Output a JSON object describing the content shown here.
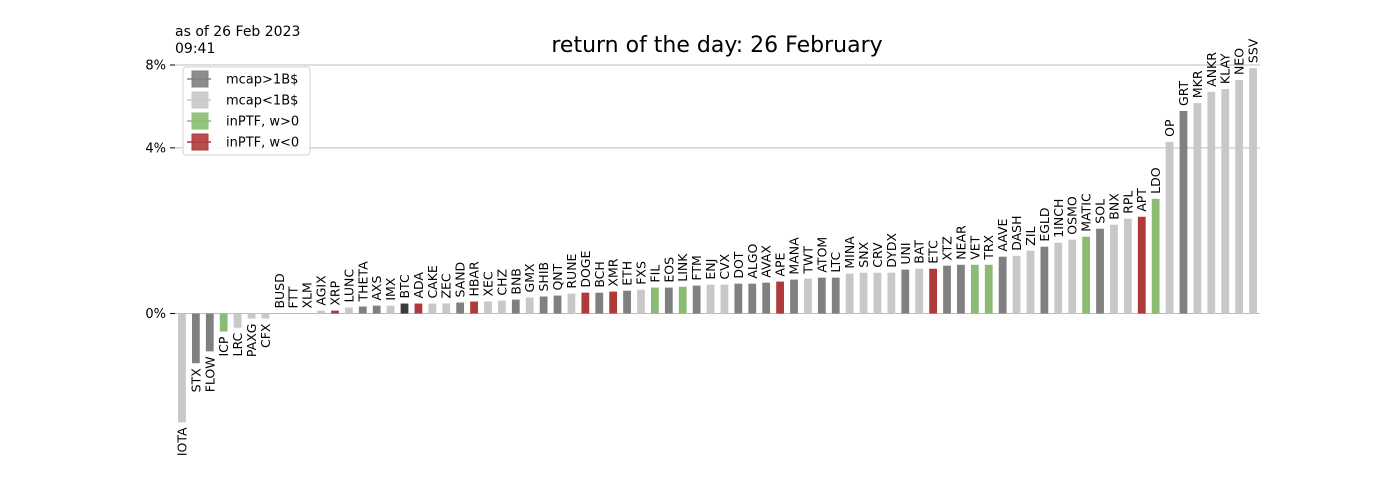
{
  "chart_data": {
    "type": "bar",
    "title": "return of the day: 26 February",
    "annotation": [
      "as of 26 Feb 2023",
      "09:41"
    ],
    "categories": [
      "IOTA",
      "STX",
      "FLOW",
      "ICP",
      "LRC",
      "PAXG",
      "CFX",
      "BUSD",
      "FTT",
      "XLM",
      "AGIX",
      "XRP",
      "LUNC",
      "THETA",
      "AXS",
      "IMX",
      "BTC",
      "ADA",
      "CAKE",
      "ZEC",
      "SAND",
      "HBAR",
      "XEC",
      "CHZ",
      "BNB",
      "GMX",
      "SHIB",
      "QNT",
      "RUNE",
      "DOGE",
      "BCH",
      "XMR",
      "ETH",
      "FXS",
      "FIL",
      "EOS",
      "LINK",
      "FTM",
      "ENJ",
      "CVX",
      "DOT",
      "ALGO",
      "AVAX",
      "APE",
      "MANA",
      "TWT",
      "ATOM",
      "LTC",
      "MINA",
      "SNX",
      "CRV",
      "DYDX",
      "UNI",
      "BAT",
      "ETC",
      "XTZ",
      "NEAR",
      "VET",
      "TRX",
      "AAVE",
      "DASH",
      "ZIL",
      "EGLD",
      "1INCH",
      "OSMO",
      "MATIC",
      "SOL",
      "BNX",
      "RPL",
      "APT",
      "LDO",
      "OP",
      "GRT",
      "MKR",
      "ANKR",
      "KLAY",
      "NEO",
      "SSV"
    ],
    "values": [
      -1.95,
      -0.51,
      -0.32,
      -0.09,
      -0.06,
      -0.01,
      -0.01,
      0,
      0,
      0,
      0.004,
      0.004,
      0.014,
      0.018,
      0.022,
      0.022,
      0.033,
      0.033,
      0.033,
      0.033,
      0.039,
      0.045,
      0.045,
      0.051,
      0.058,
      0.074,
      0.082,
      0.09,
      0.107,
      0.116,
      0.116,
      0.126,
      0.135,
      0.145,
      0.168,
      0.168,
      0.178,
      0.191,
      0.202,
      0.202,
      0.214,
      0.214,
      0.226,
      0.24,
      0.266,
      0.279,
      0.293,
      0.293,
      0.351,
      0.365,
      0.365,
      0.365,
      0.413,
      0.428,
      0.428,
      0.479,
      0.494,
      0.494,
      0.494,
      0.643,
      0.66,
      0.763,
      0.848,
      0.936,
      1.005,
      1.075,
      1.274,
      1.378,
      1.539,
      1.595,
      2.134,
      4.25,
      5.64,
      6.02,
      6.58,
      6.72,
      7.19,
      7.83
    ],
    "colors": [
      "#c8c8c8",
      "#808080",
      "#808080",
      "#8cbc73",
      "#c8c8c8",
      "#c8c8c8",
      "#c8c8c8",
      "#c8c8c8",
      "#c8c8c8",
      "#c8c8c8",
      "#c8c8c8",
      "#b03a3a",
      "#c8c8c8",
      "#808080",
      "#808080",
      "#c8c8c8",
      "#3a3a3a",
      "#b03a3a",
      "#c8c8c8",
      "#c8c8c8",
      "#808080",
      "#b03a3a",
      "#c8c8c8",
      "#c8c8c8",
      "#808080",
      "#c8c8c8",
      "#808080",
      "#808080",
      "#c8c8c8",
      "#b03a3a",
      "#808080",
      "#b03a3a",
      "#808080",
      "#c8c8c8",
      "#8cbc73",
      "#808080",
      "#8cbc73",
      "#808080",
      "#c8c8c8",
      "#c8c8c8",
      "#808080",
      "#808080",
      "#808080",
      "#b03a3a",
      "#808080",
      "#c8c8c8",
      "#808080",
      "#808080",
      "#c8c8c8",
      "#c8c8c8",
      "#c8c8c8",
      "#c8c8c8",
      "#808080",
      "#c8c8c8",
      "#b03a3a",
      "#808080",
      "#808080",
      "#8cbc73",
      "#8cbc73",
      "#808080",
      "#c8c8c8",
      "#c8c8c8",
      "#808080",
      "#c8c8c8",
      "#c8c8c8",
      "#8cbc73",
      "#808080",
      "#c8c8c8",
      "#c8c8c8",
      "#b03a3a",
      "#8cbc73",
      "#c8c8c8",
      "#808080",
      "#c8c8c8",
      "#c8c8c8",
      "#c8c8c8",
      "#c8c8c8",
      "#c8c8c8"
    ],
    "legend": [
      {
        "name": "mcap>1B$",
        "color": "#808080"
      },
      {
        "name": "mcap<1B$",
        "color": "#c8c8c8"
      },
      {
        "name": "inPTF, w>0",
        "color": "#8cbc73"
      },
      {
        "name": "inPTF, w<0",
        "color": "#b03a3a"
      }
    ],
    "legend_position": "upper left",
    "yscale": "power",
    "yscale_exponent": 0.585,
    "ylim": [
      -2,
      8
    ],
    "yticks": [
      {
        "value": 0,
        "label": "0%"
      },
      {
        "value": 4,
        "label": "4%"
      },
      {
        "value": 8,
        "label": "8%"
      }
    ],
    "grid": true
  }
}
